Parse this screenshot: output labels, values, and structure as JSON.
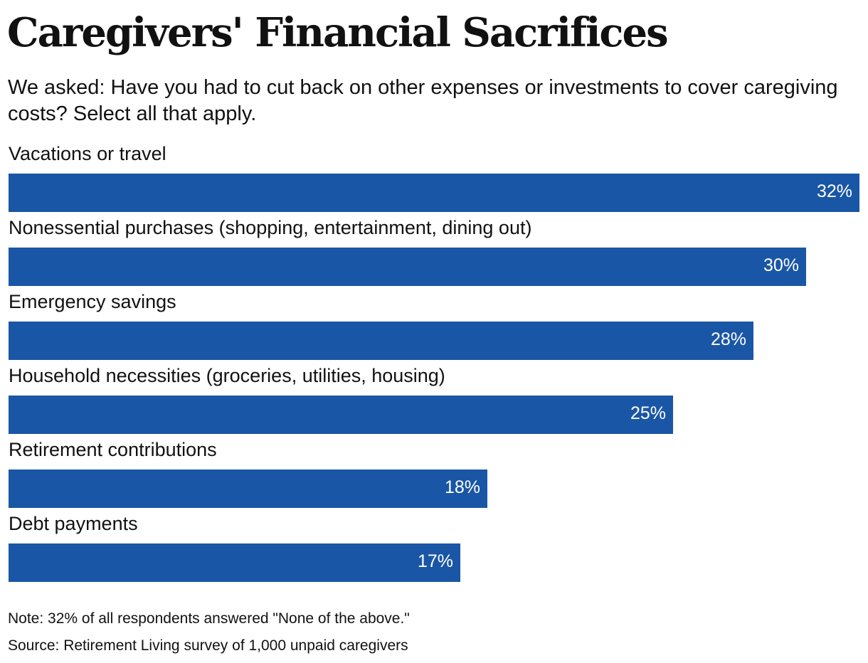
{
  "title": "Caregivers' Financial Sacrifices",
  "subtitle": "We asked: Have you had to cut back on other expenses or investments to cover caregiving costs? Select all that apply.",
  "note": "Note: 32% of all respondents answered \"None of the above.\"",
  "source": "Source: Retirement Living survey of 1,000 unpaid caregivers",
  "colors": {
    "bar": "#1A56A6",
    "value_label": "#FFFFFF",
    "text": "#111111"
  },
  "chart_data": {
    "type": "bar",
    "orientation": "horizontal",
    "categories": [
      "Vacations or travel",
      "Nonessential purchases (shopping, entertainment, dining out)",
      "Emergency savings",
      "Household necessities (groceries, utilities, housing)",
      "Retirement contributions",
      "Debt payments"
    ],
    "values": [
      32,
      30,
      28,
      25,
      18,
      17
    ],
    "value_labels": [
      "32%",
      "30%",
      "28%",
      "25%",
      "18%",
      "17%"
    ],
    "unit": "%",
    "xlim": [
      0,
      32
    ],
    "grid": false,
    "legend": "none"
  }
}
